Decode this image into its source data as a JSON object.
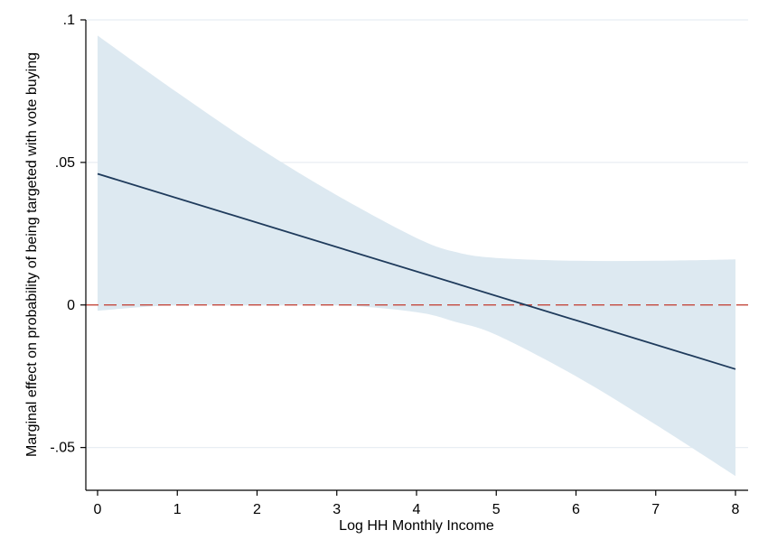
{
  "chart_data": {
    "type": "line",
    "title": "",
    "xlabel": "Log HH Monthly Income",
    "ylabel": "Marginal effect on probability of being targeted with vote buying",
    "xlim": [
      0,
      8
    ],
    "ylim": [
      -0.065,
      0.1
    ],
    "x_ticks": [
      0,
      1,
      2,
      3,
      4,
      5,
      6,
      7,
      8
    ],
    "x_tick_labels": [
      "0",
      "1",
      "2",
      "3",
      "4",
      "5",
      "6",
      "7",
      "8"
    ],
    "y_ticks": [
      -0.05,
      0,
      0.05,
      0.1
    ],
    "y_tick_labels": [
      "-.05",
      "0",
      ".05",
      ".1"
    ],
    "grid": "horizontal",
    "reference_line": {
      "y": 0,
      "color": "#c0392b",
      "style": "dashed"
    },
    "series": [
      {
        "type": "line",
        "color": "#1f3b5c",
        "x": [
          0,
          8
        ],
        "y": [
          0.046,
          -0.0225
        ]
      }
    ],
    "confidence_band": {
      "color": "#dde9f1",
      "x": [
        0,
        1,
        2,
        3,
        4,
        4.5,
        5,
        6,
        7,
        8
      ],
      "upper": [
        0.0945,
        0.0745,
        0.0555,
        0.0385,
        0.0235,
        0.0185,
        0.0165,
        0.0155,
        0.0155,
        0.016
      ],
      "lower": [
        -0.002,
        0.0,
        0.0,
        0.0,
        -0.0025,
        -0.006,
        -0.0105,
        -0.025,
        -0.042,
        -0.06
      ]
    }
  }
}
